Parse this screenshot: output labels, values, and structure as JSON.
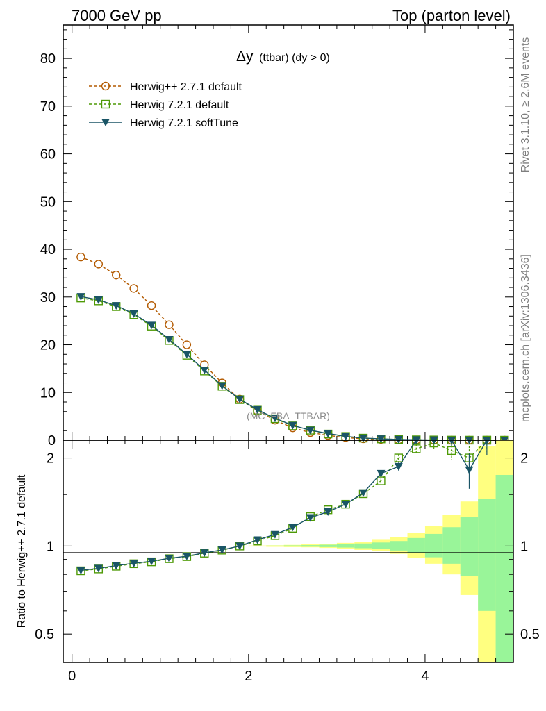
{
  "header": {
    "left": "7000 GeV pp",
    "right": "Top (parton level)"
  },
  "side_labels": {
    "rivet": "Rivet 3.1.10, ≥ 2.6M events",
    "mcplots": "mcplots.cern.ch [arXiv:1306.3436]"
  },
  "watermark": "(MC_FBA_TTBAR)",
  "plot_title": {
    "main": "Δy",
    "sub": "(ttbar) (dy > 0)"
  },
  "legend": [
    {
      "label": "Herwig++ 2.7.1 default",
      "color": "#b35a00",
      "marker": "circle-open",
      "dash": "dashed"
    },
    {
      "label": "Herwig 7.2.1 default",
      "color": "#4e9a06",
      "marker": "square-open",
      "dash": "dashed"
    },
    {
      "label": "Herwig 7.2.1 softTune",
      "color": "#1a5566",
      "marker": "triangle-down-filled",
      "dash": "solid"
    }
  ],
  "ratio_ylabel": "Ratio to Herwig++ 2.7.1 default",
  "chart_data": [
    {
      "type": "line",
      "panel": "main",
      "title": "Δy (ttbar) (dy > 0)",
      "xlim": [
        -0.1,
        5.0
      ],
      "ylim": [
        0,
        87
      ],
      "yticks": [
        0,
        10,
        20,
        30,
        40,
        50,
        60,
        70,
        80
      ],
      "yticklabels": [
        "0",
        "10",
        "20",
        "30",
        "40",
        "50",
        "60",
        "70",
        "80"
      ],
      "x": [
        0.1,
        0.3,
        0.5,
        0.7,
        0.9,
        1.1,
        1.3,
        1.5,
        1.7,
        1.9,
        2.1,
        2.3,
        2.5,
        2.7,
        2.9,
        3.1,
        3.3,
        3.5,
        3.7,
        3.9,
        4.1,
        4.3,
        4.5,
        4.7,
        4.9
      ],
      "series": [
        {
          "name": "Herwig++ 2.7.1 default",
          "values": [
            38.4,
            36.9,
            34.6,
            31.8,
            28.2,
            24.2,
            20.0,
            15.8,
            12.0,
            8.6,
            6.1,
            4.2,
            2.6,
            1.6,
            1.0,
            0.55,
            0.3,
            0.16,
            0.08,
            0.04,
            0.02,
            0.01,
            0.005,
            0.002,
            0.001
          ]
        },
        {
          "name": "Herwig 7.2.1 default",
          "values": [
            29.8,
            29.2,
            28.0,
            26.3,
            23.9,
            20.9,
            17.8,
            14.5,
            11.3,
            8.5,
            6.3,
            4.5,
            3.0,
            2.1,
            1.3,
            0.78,
            0.43,
            0.26,
            0.15,
            0.08,
            0.05,
            0.02,
            0.01,
            0.005,
            0.002
          ]
        },
        {
          "name": "Herwig 7.2.1 softTune",
          "values": [
            30.1,
            29.4,
            28.2,
            26.5,
            24.1,
            21.1,
            18.0,
            14.7,
            11.4,
            8.6,
            6.4,
            4.6,
            3.1,
            2.1,
            1.4,
            0.8,
            0.45,
            0.28,
            0.16,
            0.09,
            0.05,
            0.025,
            0.012,
            0.005,
            0.002
          ]
        }
      ]
    },
    {
      "type": "line",
      "panel": "ratio",
      "xlabel": "",
      "ylabel": "Ratio to Herwig++ 2.7.1 default",
      "xlim": [
        -0.1,
        5.0
      ],
      "ylim": [
        0.4,
        2.3
      ],
      "xticks": [
        0,
        2,
        4
      ],
      "xticklabels": [
        "0",
        "2",
        "4"
      ],
      "yticks": [
        0.5,
        1,
        2
      ],
      "yticklabels": [
        "0.5",
        "1",
        "2"
      ],
      "x": [
        0.1,
        0.3,
        0.5,
        0.7,
        0.9,
        1.1,
        1.3,
        1.5,
        1.7,
        1.9,
        2.1,
        2.3,
        2.5,
        2.7,
        2.9,
        3.1,
        3.3,
        3.5,
        3.7,
        3.9,
        4.1,
        4.3,
        4.5,
        4.7
      ],
      "series": [
        {
          "name": "Herwig 7.2.1 default",
          "values": [
            0.823,
            0.835,
            0.853,
            0.87,
            0.883,
            0.905,
            0.92,
            0.945,
            0.968,
            1.0,
            1.04,
            1.085,
            1.15,
            1.26,
            1.33,
            1.39,
            1.51,
            1.67,
            2.0,
            2.15,
            2.25,
            2.12,
            2.0,
            2.4
          ],
          "errors": [
            0.005,
            0.005,
            0.005,
            0.005,
            0.005,
            0.005,
            0.006,
            0.006,
            0.007,
            0.008,
            0.009,
            0.01,
            0.012,
            0.015,
            0.02,
            0.025,
            0.03,
            0.04,
            0.06,
            0.08,
            0.1,
            0.15,
            0.2,
            0.3
          ]
        },
        {
          "name": "Herwig 7.2.1 softTune",
          "values": [
            0.826,
            0.839,
            0.857,
            0.873,
            0.887,
            0.908,
            0.923,
            0.948,
            0.97,
            1.0,
            1.05,
            1.095,
            1.16,
            1.25,
            1.31,
            1.39,
            1.52,
            1.77,
            1.87,
            2.35,
            2.35,
            2.35,
            1.82,
            2.35
          ],
          "errors": [
            0.005,
            0.005,
            0.005,
            0.005,
            0.005,
            0.005,
            0.006,
            0.006,
            0.007,
            0.008,
            0.009,
            0.01,
            0.012,
            0.015,
            0.02,
            0.025,
            0.03,
            0.04,
            0.06,
            0.08,
            0.1,
            0.15,
            0.25,
            0.3
          ]
        }
      ],
      "reference_line": 1,
      "bands": {
        "bin_edges": [
          2.0,
          2.2,
          2.4,
          2.6,
          2.8,
          3.0,
          3.2,
          3.4,
          3.6,
          3.8,
          4.0,
          4.2,
          4.4,
          4.6,
          4.8,
          5.0
        ],
        "yellow": [
          [
            0.996,
            1.004
          ],
          [
            0.994,
            1.006
          ],
          [
            0.992,
            1.009
          ],
          [
            0.99,
            1.013
          ],
          [
            0.985,
            1.018
          ],
          [
            0.978,
            1.025
          ],
          [
            0.97,
            1.035
          ],
          [
            0.96,
            1.05
          ],
          [
            0.94,
            1.07
          ],
          [
            0.91,
            1.11
          ],
          [
            0.87,
            1.17
          ],
          [
            0.8,
            1.28
          ],
          [
            0.68,
            1.42
          ],
          [
            0.35,
            2.2
          ],
          [
            0.35,
            2.3
          ]
        ],
        "green": [
          [
            0.998,
            1.002
          ],
          [
            0.997,
            1.003
          ],
          [
            0.996,
            1.005
          ],
          [
            0.995,
            1.007
          ],
          [
            0.992,
            1.01
          ],
          [
            0.988,
            1.014
          ],
          [
            0.983,
            1.02
          ],
          [
            0.976,
            1.028
          ],
          [
            0.965,
            1.04
          ],
          [
            0.945,
            1.065
          ],
          [
            0.915,
            1.1
          ],
          [
            0.87,
            1.16
          ],
          [
            0.79,
            1.26
          ],
          [
            0.6,
            1.45
          ],
          [
            0.35,
            1.75
          ]
        ]
      }
    }
  ]
}
